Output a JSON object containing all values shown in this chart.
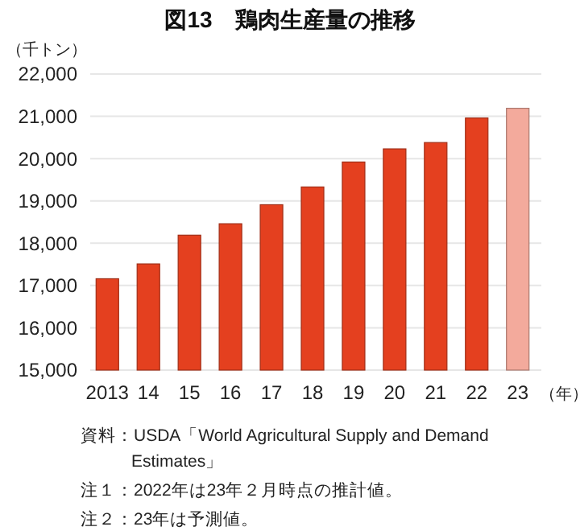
{
  "chart_data": {
    "type": "bar",
    "title": "図13　鶏肉生産量の推移",
    "ylabel": "（千トン）",
    "xlabel": "（年）",
    "categories": [
      "2013",
      "14",
      "15",
      "16",
      "17",
      "18",
      "19",
      "20",
      "21",
      "22",
      "23"
    ],
    "values": [
      17160,
      17510,
      18190,
      18460,
      18910,
      19330,
      19920,
      20230,
      20380,
      20960,
      21190
    ],
    "colors": [
      "#e4401f",
      "#e4401f",
      "#e4401f",
      "#e4401f",
      "#e4401f",
      "#e4401f",
      "#e4401f",
      "#e4401f",
      "#e4401f",
      "#e4401f",
      "#f3aa9c"
    ],
    "ylim": [
      15000,
      22000
    ],
    "yticks": [
      {
        "value": 15000,
        "label": "15,000"
      },
      {
        "value": 16000,
        "label": "16,000"
      },
      {
        "value": 17000,
        "label": "17,000"
      },
      {
        "value": 18000,
        "label": "18,000"
      },
      {
        "value": 19000,
        "label": "19,000"
      },
      {
        "value": 20000,
        "label": "20,000"
      },
      {
        "value": 21000,
        "label": "21,000"
      },
      {
        "value": 22000,
        "label": "22,000"
      }
    ],
    "grid": "y",
    "annotations": [
      "資料：USDA「World Agricultural Supply and Demand Estimates」",
      "注１：2022年は23年２月時点の推計値。",
      "注２：23年は予測値。"
    ]
  }
}
